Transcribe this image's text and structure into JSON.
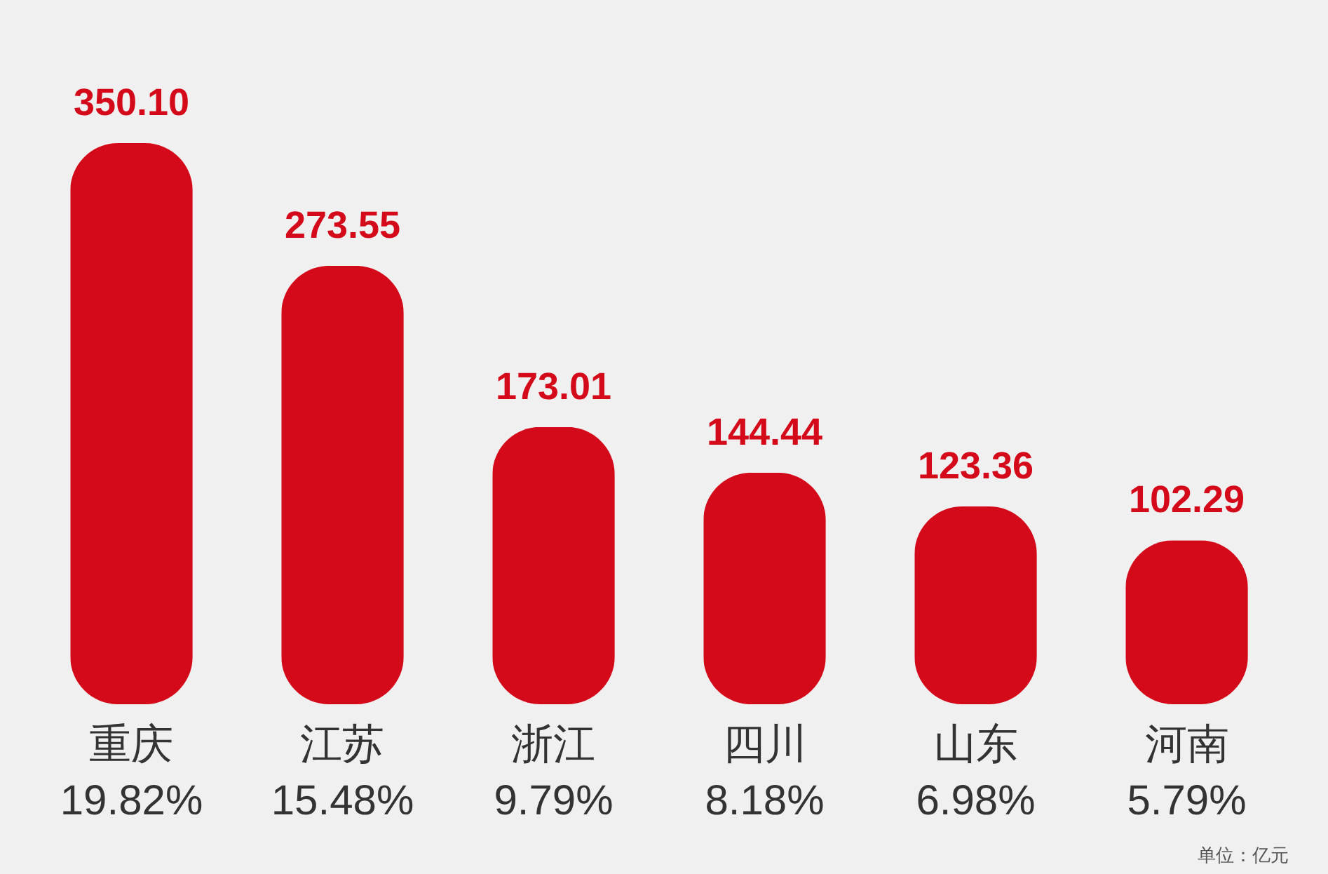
{
  "chart_data": {
    "type": "bar",
    "categories": [
      "重庆\n19.82%",
      "江苏\n15.48%",
      "浙江\n9.79%",
      "四川\n8.18%",
      "山东\n6.98%",
      "河南\n5.79%"
    ],
    "values": [
      350.1,
      273.55,
      173.01,
      144.44,
      123.36,
      102.29
    ],
    "value_labels": [
      "350.10",
      "273.55",
      "173.01",
      "144.44",
      "123.36",
      "102.29"
    ],
    "color": "#d40a1a",
    "annotations": [
      "单位：亿元"
    ]
  }
}
